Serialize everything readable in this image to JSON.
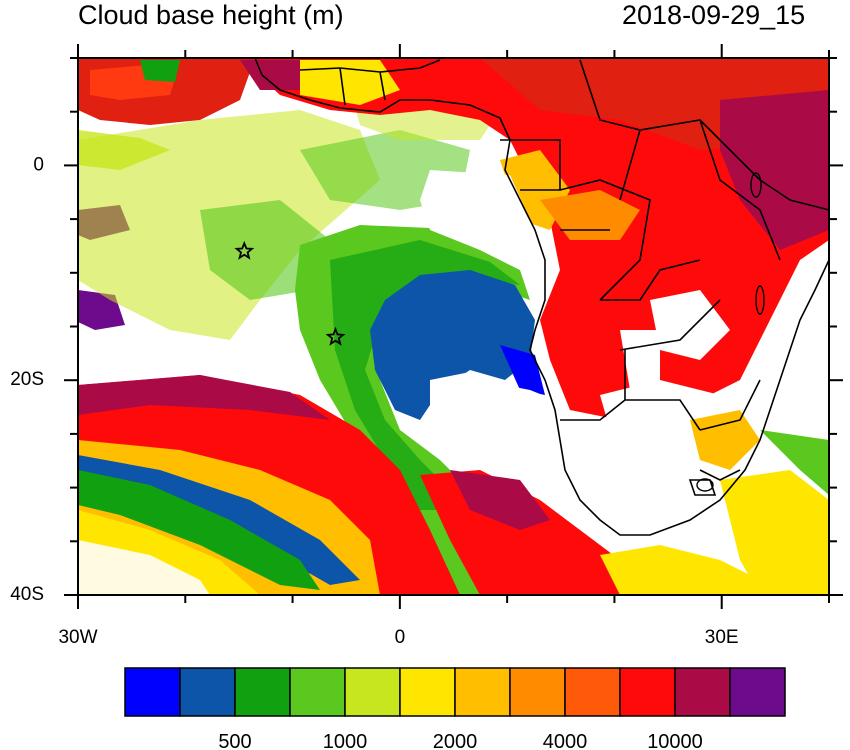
{
  "figure": {
    "title": "Cloud base height (m)",
    "timestamp": "2018-09-29_15"
  },
  "map": {
    "lon_range": [
      -30,
      40
    ],
    "lat_range": [
      -40,
      10
    ],
    "lat_ticks": [
      {
        "lat": 0,
        "label": "0"
      },
      {
        "lat": -20,
        "label": "20S"
      },
      {
        "lat": -40,
        "label": "40S"
      }
    ],
    "lon_ticks": [
      {
        "lon": -30,
        "label": "30W"
      },
      {
        "lon": 0,
        "label": "0"
      },
      {
        "lon": 30,
        "label": "30E"
      }
    ],
    "stars": [
      {
        "lon": -14.5,
        "lat": -8.0
      },
      {
        "lon": -6.0,
        "lat": -16.0
      }
    ]
  },
  "colorbar": {
    "colors": [
      "#0000ff",
      "#0d55a8",
      "#10a010",
      "#5ac81e",
      "#c8e61e",
      "#ffe600",
      "#ffbe00",
      "#ff8c00",
      "#ff5a0a",
      "#ff0a0a",
      "#aa0a46",
      "#6e0a8c"
    ],
    "tick_labels": [
      "500",
      "1000",
      "2000",
      "4000",
      "10000"
    ]
  }
}
